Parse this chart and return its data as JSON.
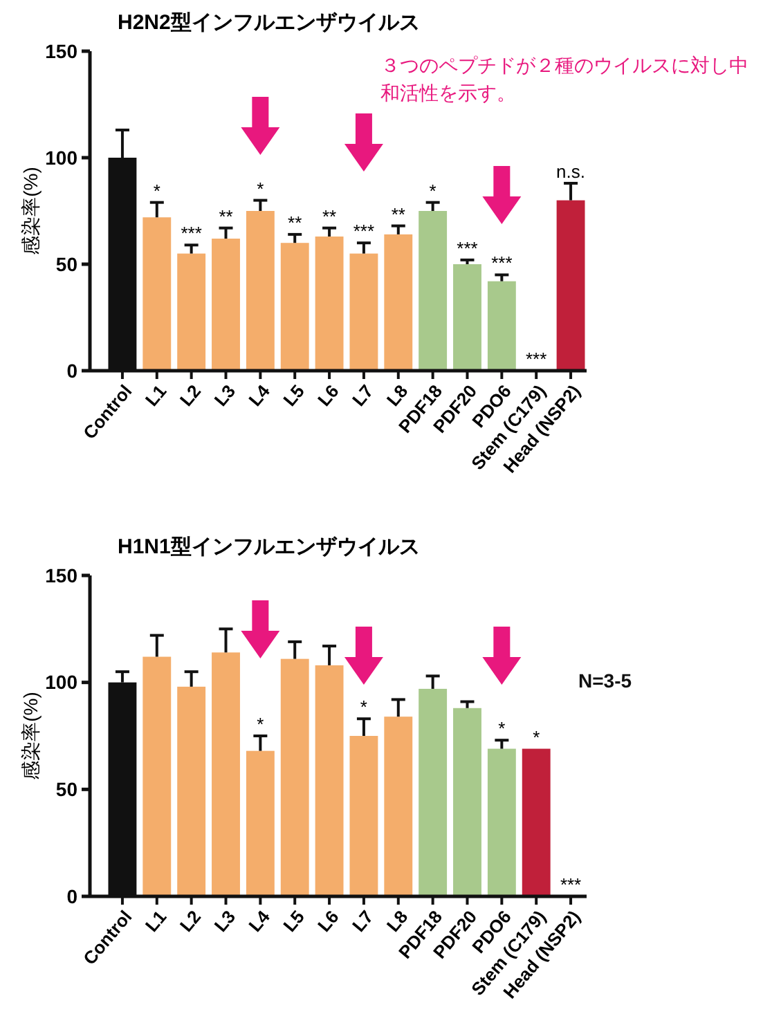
{
  "chart_data": [
    {
      "type": "bar",
      "title": "H2N2型インフルエンザウイルス",
      "ylabel": "感染率(%)",
      "categories": [
        "Control",
        "L1",
        "L2",
        "L3",
        "L4",
        "L5",
        "L6",
        "L7",
        "L8",
        "PDF18",
        "PDF20",
        "PDO6",
        "Stem (C179)",
        "Head (NSP2)"
      ],
      "values": [
        100,
        72,
        55,
        62,
        75,
        60,
        63,
        55,
        64,
        75,
        50,
        42,
        0,
        80
      ],
      "colors": [
        "#111111",
        "#f4ad6b",
        "#f4ad6b",
        "#f4ad6b",
        "#f4ad6b",
        "#f4ad6b",
        "#f4ad6b",
        "#f4ad6b",
        "#f4ad6b",
        "#a8c98c",
        "#a8c98c",
        "#a8c98c",
        "#a8c98c",
        "#c0203a"
      ],
      "errors": [
        [
          100,
          113
        ],
        [
          72,
          79
        ],
        [
          55,
          59
        ],
        [
          62,
          67
        ],
        [
          75,
          80
        ],
        [
          60,
          64
        ],
        [
          63,
          67
        ],
        [
          55,
          60
        ],
        [
          64,
          68
        ],
        [
          75,
          79
        ],
        [
          50,
          52
        ],
        [
          42,
          45
        ],
        null,
        [
          80,
          88
        ]
      ],
      "ylim": [
        0,
        150
      ],
      "yticks": [
        0,
        50,
        100,
        150
      ],
      "grid": false,
      "annotations": [
        {
          "text": "*",
          "x": "L1",
          "y": 79
        },
        {
          "text": "***",
          "x": "L2",
          "y": 59
        },
        {
          "text": "**",
          "x": "L3",
          "y": 67
        },
        {
          "text": "*",
          "x": "L4",
          "y": 80
        },
        {
          "text": "**",
          "x": "L5",
          "y": 64
        },
        {
          "text": "**",
          "x": "L6",
          "y": 67
        },
        {
          "text": "***",
          "x": "L7",
          "y": 60
        },
        {
          "text": "**",
          "x": "L8",
          "y": 68
        },
        {
          "text": "*",
          "x": "PDF18",
          "y": 79
        },
        {
          "text": "***",
          "x": "PDF20",
          "y": 52
        },
        {
          "text": "***",
          "x": "PDO6",
          "y": 45
        },
        {
          "text": "***",
          "x": "Stem (C179)",
          "y": 0
        },
        {
          "text": "n.s.",
          "x": "Head (NSP2)",
          "y": 88
        },
        "３つのペプチドが２種のウイルスに対し中和活性を示す。"
      ]
    },
    {
      "type": "bar",
      "title": "H1N1型インフルエンザウイルス",
      "ylabel": "感染率(%)",
      "categories": [
        "Control",
        "L1",
        "L2",
        "L3",
        "L4",
        "L5",
        "L6",
        "L7",
        "L8",
        "PDF18",
        "PDF20",
        "PDO6",
        "Stem (C179)",
        "Head (NSP2)"
      ],
      "values": [
        100,
        112,
        98,
        114,
        68,
        111,
        108,
        75,
        84,
        97,
        88,
        69,
        69,
        0
      ],
      "colors": [
        "#111111",
        "#f4ad6b",
        "#f4ad6b",
        "#f4ad6b",
        "#f4ad6b",
        "#f4ad6b",
        "#f4ad6b",
        "#f4ad6b",
        "#f4ad6b",
        "#a8c98c",
        "#a8c98c",
        "#a8c98c",
        "#c0203a",
        "#c0203a"
      ],
      "errors": [
        [
          100,
          105
        ],
        [
          112,
          122
        ],
        [
          98,
          105
        ],
        [
          114,
          125
        ],
        [
          68,
          75
        ],
        [
          111,
          119
        ],
        [
          108,
          117
        ],
        [
          75,
          83
        ],
        [
          84,
          92
        ],
        [
          97,
          103
        ],
        [
          88,
          91
        ],
        [
          69,
          73
        ],
        null,
        null
      ],
      "ylim": [
        0,
        150
      ],
      "yticks": [
        0,
        50,
        100,
        150
      ],
      "grid": false,
      "annotations": [
        {
          "text": "*",
          "x": "L4",
          "y": 75
        },
        {
          "text": "*",
          "x": "L7",
          "y": 83
        },
        {
          "text": "*",
          "x": "PDO6",
          "y": 73
        },
        {
          "text": "*",
          "x": "Stem (C179)",
          "y": 69
        },
        {
          "text": "***",
          "x": "Head (NSP2)",
          "y": 0
        },
        "N=3-5"
      ]
    }
  ]
}
